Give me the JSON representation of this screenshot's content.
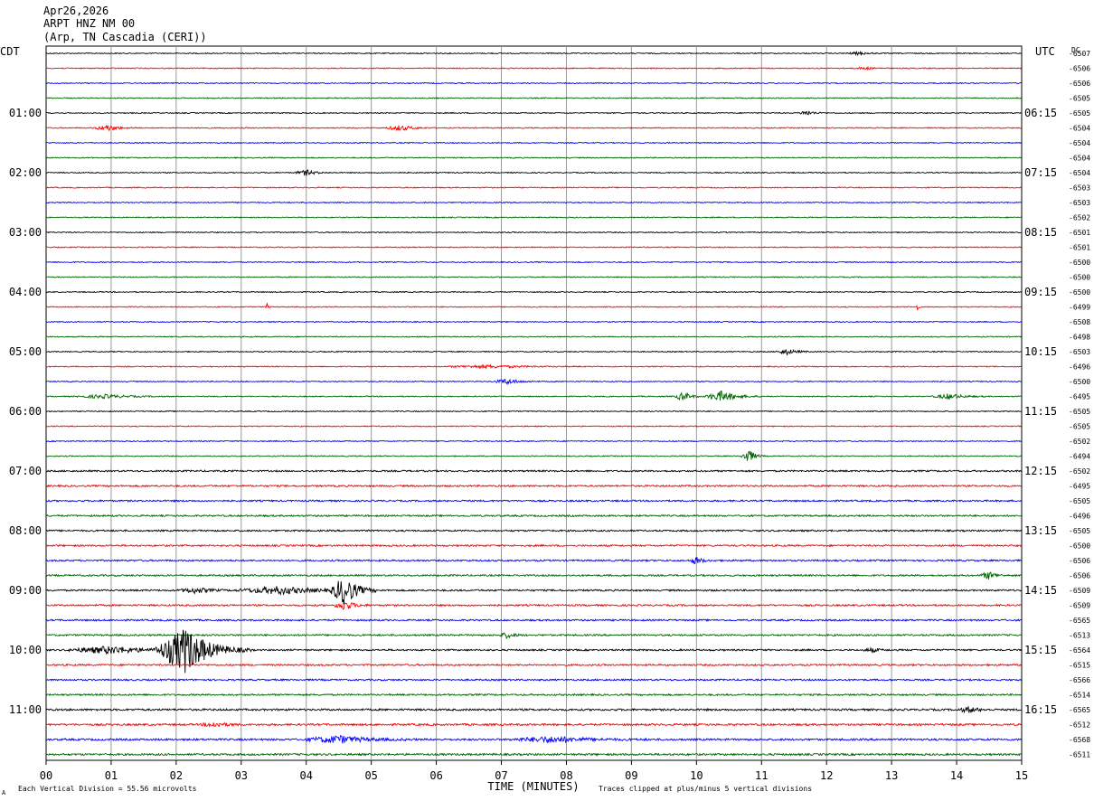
{
  "header": {
    "date": "Apr26,2026",
    "station": "ARPT HNZ NM 00",
    "location": "(Arp, TN Cascadia (CERI))"
  },
  "axes": {
    "left_tz": "CDT",
    "right_tz": "UTC",
    "dc_label": "DC",
    "xlabel": "TIME (MINUTES)"
  },
  "footer": {
    "scale_note": "Each Vertical Division =   55.56 microvolts",
    "clip_note": "Traces clipped at plus/minus 5 vertical divisions",
    "corner_mark": "A"
  },
  "colors": {
    "trace_cycle": [
      "#000000",
      "#ff0000",
      "#0000ff",
      "#006400"
    ],
    "grid": "#9a9a9a"
  },
  "chart_data": {
    "type": "line",
    "xlim": [
      0,
      15
    ],
    "x_ticks": [
      "00",
      "01",
      "02",
      "03",
      "04",
      "05",
      "06",
      "07",
      "08",
      "09",
      "10",
      "11",
      "12",
      "13",
      "14",
      "15"
    ],
    "trace_count": 48,
    "left_hour_labels": [
      "01:00",
      "02:00",
      "03:00",
      "04:00",
      "05:00",
      "06:00",
      "07:00",
      "08:00",
      "09:00",
      "10:00",
      "11:00"
    ],
    "right_hour_labels": [
      "06:15",
      "07:15",
      "08:15",
      "09:15",
      "10:15",
      "11:15",
      "12:15",
      "13:15",
      "14:15",
      "15:15",
      "16:15"
    ],
    "hour_label_trace_start": 4,
    "dc_offsets": [
      "-6507",
      "-6506",
      "-6506",
      "-6505",
      "-6505",
      "-6504",
      "-6504",
      "-6504",
      "-6504",
      "-6503",
      "-6503",
      "-6502",
      "-6501",
      "-6501",
      "-6500",
      "-6500",
      "-6500",
      "-6499",
      "-6508",
      "-6498",
      "-6503",
      "-6496",
      "-6500",
      "-6495",
      "-6505",
      "-6505",
      "-6502",
      "-6494",
      "-6502",
      "-6495",
      "-6505",
      "-6496",
      "-6505",
      "-6500",
      "-6506",
      "-6506",
      "-6509",
      "-6509",
      "-6565",
      "-6513",
      "-6564",
      "-6515",
      "-6566",
      "-6514",
      "-6565",
      "-6512",
      "-6568",
      "-6511"
    ],
    "events": [
      {
        "trace": 0,
        "minute": 12.5,
        "amp": 1.5,
        "dur": 0.4
      },
      {
        "trace": 1,
        "minute": 12.6,
        "amp": 1.2,
        "dur": 0.4
      },
      {
        "trace": 4,
        "minute": 11.7,
        "amp": 2.5,
        "dur": 0.3
      },
      {
        "trace": 5,
        "minute": 0.95,
        "amp": 3,
        "dur": 0.5
      },
      {
        "trace": 5,
        "minute": 5.45,
        "amp": 3,
        "dur": 0.5
      },
      {
        "trace": 8,
        "minute": 4.0,
        "amp": 3,
        "dur": 0.4
      },
      {
        "trace": 20,
        "minute": 11.4,
        "amp": 3,
        "dur": 0.4
      },
      {
        "trace": 21,
        "minute": 6.8,
        "amp": 1.5,
        "dur": 1.5
      },
      {
        "trace": 22,
        "minute": 7.1,
        "amp": 3,
        "dur": 0.5
      },
      {
        "trace": 23,
        "minute": 10.4,
        "amp": 6,
        "dur": 0.6
      },
      {
        "trace": 23,
        "minute": 9.8,
        "amp": 5,
        "dur": 0.3
      },
      {
        "trace": 23,
        "minute": 13.9,
        "amp": 3,
        "dur": 0.6
      },
      {
        "trace": 23,
        "minute": 0.9,
        "amp": 2,
        "dur": 1.0
      },
      {
        "trace": 27,
        "minute": 10.8,
        "amp": 8,
        "dur": 0.25
      },
      {
        "trace": 34,
        "minute": 10.0,
        "amp": 4,
        "dur": 0.25
      },
      {
        "trace": 35,
        "minute": 14.5,
        "amp": 4,
        "dur": 0.3
      },
      {
        "trace": 36,
        "minute": 4.6,
        "amp": 16,
        "dur": 0.5
      },
      {
        "trace": 36,
        "minute": 3.6,
        "amp": 4,
        "dur": 1.5
      },
      {
        "trace": 36,
        "minute": 2.3,
        "amp": 3,
        "dur": 0.6
      },
      {
        "trace": 37,
        "minute": 4.6,
        "amp": 5,
        "dur": 0.4
      },
      {
        "trace": 39,
        "minute": 7.1,
        "amp": 3,
        "dur": 0.3
      },
      {
        "trace": 40,
        "minute": 2.15,
        "amp": 26,
        "dur": 1.0
      },
      {
        "trace": 40,
        "minute": 1.0,
        "amp": 4,
        "dur": 1.5
      },
      {
        "trace": 40,
        "minute": 12.7,
        "amp": 2,
        "dur": 0.3
      },
      {
        "trace": 44,
        "minute": 14.2,
        "amp": 3,
        "dur": 0.4
      },
      {
        "trace": 46,
        "minute": 4.5,
        "amp": 4,
        "dur": 1.2
      },
      {
        "trace": 46,
        "minute": 7.8,
        "amp": 3,
        "dur": 1.5
      },
      {
        "trace": 45,
        "minute": 2.6,
        "amp": 2.5,
        "dur": 0.5
      },
      {
        "trace": 17,
        "minute": 3.4,
        "amp": 5,
        "dur": 0.05
      },
      {
        "trace": 17,
        "minute": 13.4,
        "amp": 4,
        "dur": 0.05
      }
    ]
  }
}
